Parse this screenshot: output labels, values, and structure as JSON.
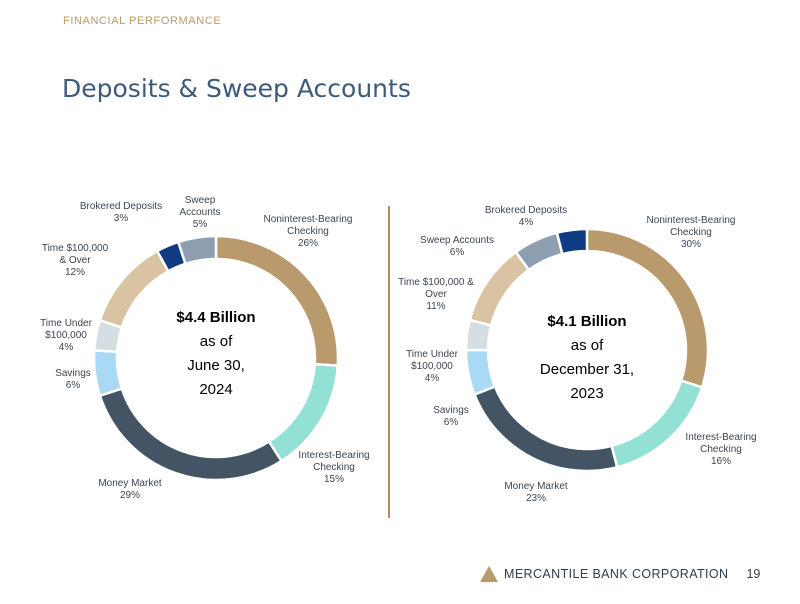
{
  "header": {
    "section": "FINANCIAL PERFORMANCE",
    "title": "Deposits & Sweep Accounts"
  },
  "footer": {
    "company": "MERCANTILE BANK CORPORATION",
    "page": "19"
  },
  "colors": {
    "noninterest": "#b89a6c",
    "interest": "#93e0d4",
    "money_market": "#435565",
    "savings": "#aad9f6",
    "time_under": "#d5dfe3",
    "time_over": "#d9c3a3",
    "brokered": "#0e3b84",
    "sweep": "#8c9eaf",
    "accent": "#b48a5c"
  },
  "chart_data": [
    {
      "type": "pie",
      "title": "$4.4 Billion as of June 30, 2024",
      "center_lines": [
        "$4.4 Billion",
        "as of",
        "June 30,",
        "2024"
      ],
      "slices": [
        {
          "key": "noninterest",
          "label": [
            "Noninterest-Bearing",
            "Checking"
          ],
          "pct_label": "26%",
          "value": 26
        },
        {
          "key": "interest",
          "label": [
            "Interest-Bearing",
            "Checking"
          ],
          "pct_label": "15%",
          "value": 15
        },
        {
          "key": "money_market",
          "label": [
            "Money Market"
          ],
          "pct_label": "29%",
          "value": 29
        },
        {
          "key": "savings",
          "label": [
            "Savings"
          ],
          "pct_label": "6%",
          "value": 6
        },
        {
          "key": "time_under",
          "label": [
            "Time Under",
            "$100,000"
          ],
          "pct_label": "4%",
          "value": 4
        },
        {
          "key": "time_over",
          "label": [
            "Time $100,000",
            "& Over"
          ],
          "pct_label": "12%",
          "value": 12
        },
        {
          "key": "brokered",
          "label": [
            "Brokered Deposits"
          ],
          "pct_label": "3%",
          "value": 3
        },
        {
          "key": "sweep",
          "label": [
            "Sweep",
            "Accounts"
          ],
          "pct_label": "5%",
          "value": 5
        }
      ]
    },
    {
      "type": "pie",
      "title": "$4.1 Billion as of December 31, 2023",
      "center_lines": [
        "$4.1 Billion",
        "as of",
        "December 31,",
        "2023"
      ],
      "slices": [
        {
          "key": "noninterest",
          "label": [
            "Noninterest-Bearing",
            "Checking"
          ],
          "pct_label": "30%",
          "value": 30
        },
        {
          "key": "interest",
          "label": [
            "Interest-Bearing",
            "Checking"
          ],
          "pct_label": "16%",
          "value": 16
        },
        {
          "key": "money_market",
          "label": [
            "Money Market"
          ],
          "pct_label": "23%",
          "value": 23
        },
        {
          "key": "savings",
          "label": [
            "Savings"
          ],
          "pct_label": "6%",
          "value": 6
        },
        {
          "key": "time_under",
          "label": [
            "Time Under",
            "$100,000"
          ],
          "pct_label": "4%",
          "value": 4
        },
        {
          "key": "time_over",
          "label": [
            "Time $100,000 &",
            "Over"
          ],
          "pct_label": "11%",
          "value": 11
        },
        {
          "key": "sweep",
          "label": [
            "Sweep Accounts"
          ],
          "pct_label": "6%",
          "value": 6
        },
        {
          "key": "brokered",
          "label": [
            "Brokered Deposits"
          ],
          "pct_label": "4%",
          "value": 4
        }
      ]
    }
  ]
}
